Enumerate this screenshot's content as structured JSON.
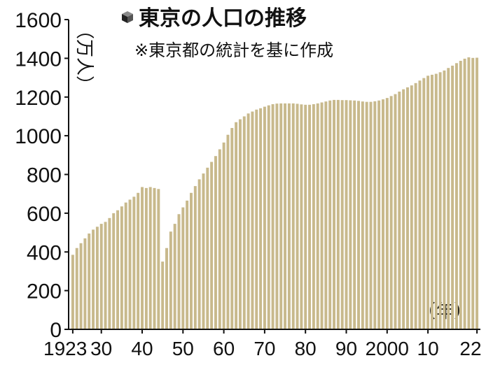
{
  "colors": {
    "bar": "#c8b98c",
    "bar_edge": "#b3a374",
    "axis": "#111111",
    "text": "#111111"
  },
  "header": {
    "icon": "cube-icon",
    "title": "東京の人口の推移",
    "subtitle": "※東京都の統計を基に作成"
  },
  "chart_data": {
    "type": "bar",
    "title": "東京の人口の推移",
    "subtitle": "※東京都の統計を基に作成",
    "ylabel": "（万人）",
    "xlabel": "（年）",
    "ylim": [
      0,
      1600
    ],
    "yticks": [
      "0",
      "200",
      "400",
      "600",
      "800",
      "1000",
      "1200",
      "1400",
      "1600"
    ],
    "xticks": [
      {
        "year": 1923,
        "label": "1923"
      },
      {
        "year": 1930,
        "label": "30"
      },
      {
        "year": 1940,
        "label": "40"
      },
      {
        "year": 1950,
        "label": "50"
      },
      {
        "year": 1960,
        "label": "60"
      },
      {
        "year": 1970,
        "label": "70"
      },
      {
        "year": 1980,
        "label": "80"
      },
      {
        "year": 1990,
        "label": "90"
      },
      {
        "year": 2000,
        "label": "2000"
      },
      {
        "year": 2010,
        "label": "10"
      },
      {
        "year": 2022,
        "label": "22"
      }
    ],
    "grid": false,
    "legend": "none",
    "x": [
      1923,
      1924,
      1925,
      1926,
      1927,
      1928,
      1929,
      1930,
      1931,
      1932,
      1933,
      1934,
      1935,
      1936,
      1937,
      1938,
      1939,
      1940,
      1941,
      1942,
      1943,
      1944,
      1945,
      1946,
      1947,
      1948,
      1949,
      1950,
      1951,
      1952,
      1953,
      1954,
      1955,
      1956,
      1957,
      1958,
      1959,
      1960,
      1961,
      1962,
      1963,
      1964,
      1965,
      1966,
      1967,
      1968,
      1969,
      1970,
      1971,
      1972,
      1973,
      1974,
      1975,
      1976,
      1977,
      1978,
      1979,
      1980,
      1981,
      1982,
      1983,
      1984,
      1985,
      1986,
      1987,
      1988,
      1989,
      1990,
      1991,
      1992,
      1993,
      1994,
      1995,
      1996,
      1997,
      1998,
      1999,
      2000,
      2001,
      2002,
      2003,
      2004,
      2005,
      2006,
      2007,
      2008,
      2009,
      2010,
      2011,
      2012,
      2013,
      2014,
      2015,
      2016,
      2017,
      2018,
      2019,
      2020,
      2021,
      2022
    ],
    "values": [
      385,
      420,
      445,
      470,
      495,
      515,
      530,
      545,
      555,
      575,
      600,
      615,
      635,
      655,
      670,
      685,
      705,
      735,
      730,
      735,
      730,
      725,
      350,
      420,
      505,
      545,
      595,
      630,
      665,
      705,
      740,
      775,
      805,
      835,
      865,
      895,
      930,
      965,
      1005,
      1040,
      1070,
      1085,
      1100,
      1115,
      1125,
      1135,
      1142,
      1150,
      1157,
      1163,
      1166,
      1167,
      1167,
      1167,
      1167,
      1165,
      1162,
      1160,
      1160,
      1163,
      1167,
      1172,
      1177,
      1182,
      1185,
      1185,
      1184,
      1184,
      1183,
      1182,
      1180,
      1177,
      1175,
      1175,
      1178,
      1182,
      1188,
      1195,
      1205,
      1215,
      1228,
      1240,
      1250,
      1260,
      1272,
      1285,
      1298,
      1310,
      1315,
      1320,
      1328,
      1337,
      1350,
      1362,
      1375,
      1387,
      1398,
      1405,
      1402,
      1403
    ]
  }
}
